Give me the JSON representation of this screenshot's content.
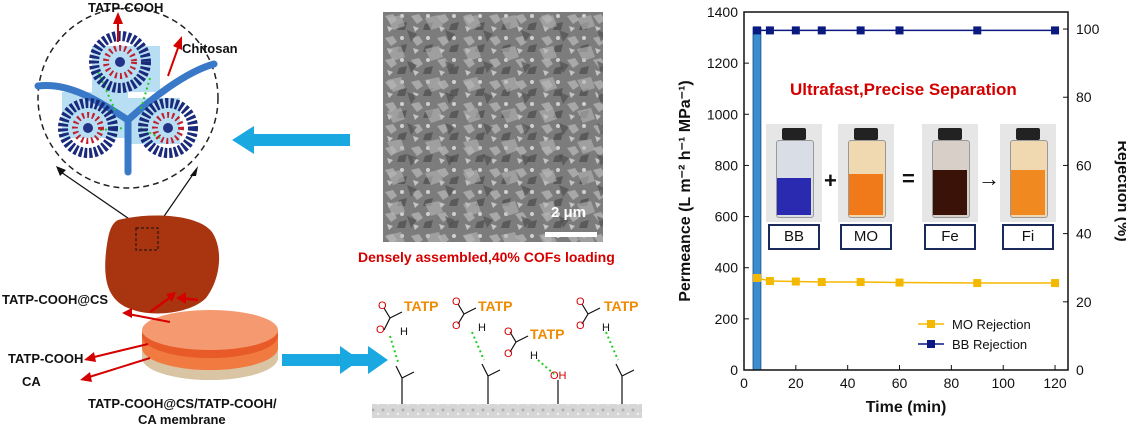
{
  "labels": {
    "tatp_cooh_top": "TATP-COOH",
    "chitosan": "Chitosan",
    "tatp_cooh_cs": "TATP-COOH@CS",
    "tatp_cooh_layer": "TATP-COOH",
    "ca": "CA",
    "membrane_line1": "TATP-COOH@CS/TATP-COOH/",
    "membrane_line2": "CA membrane",
    "scale_bar": "2 μm",
    "sem_caption": "Densely assembled,40% COFs loading",
    "tatp": "TATP",
    "h": "H",
    "o": "O",
    "oh": "OH"
  },
  "inset": {
    "title": "Ultrafast,Precise Separation",
    "vials": [
      "BB",
      "MO",
      "Fe",
      "Fi"
    ],
    "ops": [
      "+",
      "=",
      "→"
    ]
  },
  "colors": {
    "permeance_bar": "#3a8ed0",
    "mo_series": "#f5b800",
    "bb_series": "#0a1a80",
    "caption_red": "#d40000",
    "tatp_orange": "#f08a00",
    "arrow_cyan": "#1aa8e0"
  },
  "chart_data": {
    "type": "line",
    "xlabel": "Time (min)",
    "ylabel_left": "Permeance (L m⁻² h⁻¹ MPa⁻¹)",
    "ylabel_right": "Rejection (%)",
    "xlim": [
      0,
      125
    ],
    "ylim_left": [
      0,
      1400
    ],
    "ylim_right": [
      0,
      105
    ],
    "xticks": [
      0,
      20,
      40,
      60,
      80,
      100,
      120
    ],
    "yticks_left": [
      0,
      200,
      400,
      600,
      800,
      1000,
      1200,
      1400
    ],
    "yticks_right": [
      0,
      20,
      40,
      60,
      80,
      100
    ],
    "bar": {
      "x": 5,
      "value": 1340,
      "width": 3
    },
    "series": [
      {
        "name": "MO Rejection",
        "axis": "left",
        "x": [
          5,
          10,
          20,
          30,
          45,
          60,
          90,
          120
        ],
        "values": [
          360,
          348,
          346,
          344,
          344,
          342,
          340,
          340
        ]
      },
      {
        "name": "BB Rejection",
        "axis": "right",
        "x": [
          5,
          10,
          20,
          30,
          45,
          60,
          90,
          120
        ],
        "values": [
          99.6,
          99.6,
          99.6,
          99.6,
          99.6,
          99.6,
          99.6,
          99.6
        ]
      }
    ],
    "legend": "bottom-right"
  }
}
